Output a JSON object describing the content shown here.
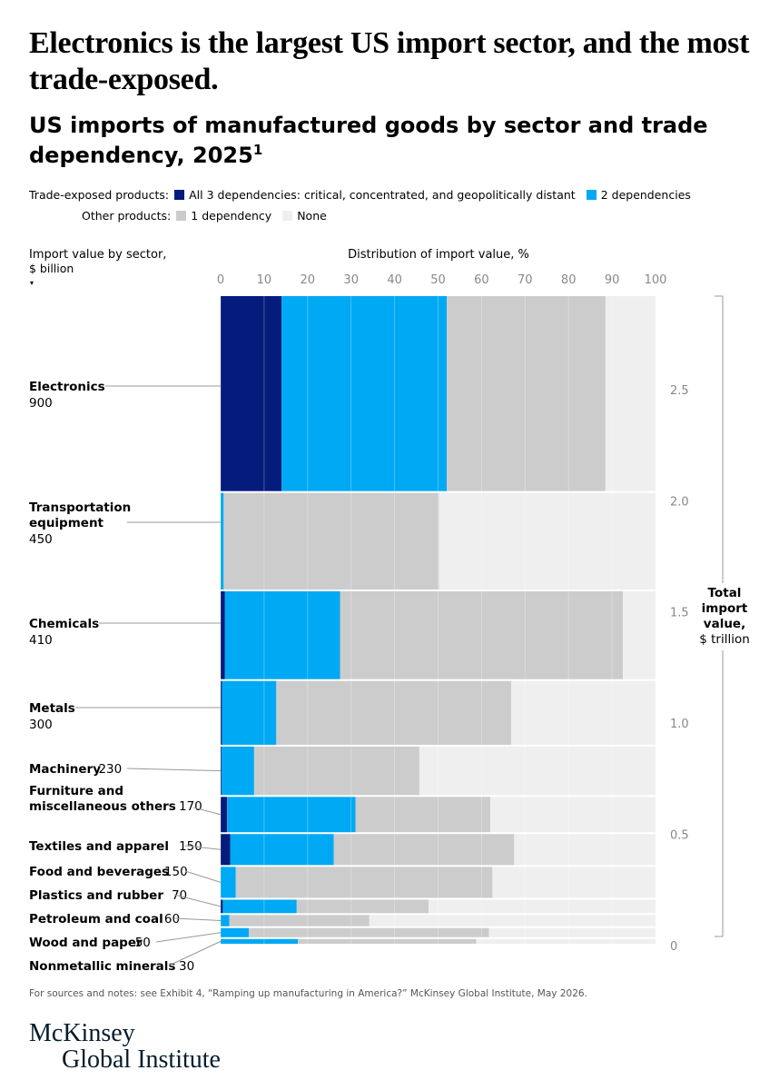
{
  "headline": "Electronics is the largest US import sector, and the most trade-exposed.",
  "subtitle": "US imports of manufactured goods by sector and trade dependency, 2025",
  "subtitle_note": "1",
  "legend": {
    "row1_label": "Trade-exposed products:",
    "row2_label": "Other products:",
    "items": [
      {
        "label": "All 3 dependencies: critical, concentrated, and geopolitically distant",
        "color": "#051c7c"
      },
      {
        "label": "2 dependencies",
        "color": "#00a9f4"
      },
      {
        "label": "1 dependency",
        "color": "#cccccc"
      },
      {
        "label": "None",
        "color": "#efefef"
      }
    ]
  },
  "footnote": "For sources and notes: see Exhibit 4, “Ramping up manufacturing in America?” McKinsey Global Institute, May 2026.",
  "brand": {
    "line1": "McKinsey",
    "line2": "Global Institute"
  },
  "chart_data": {
    "type": "bar",
    "subtype": "marimekko",
    "x_axis_title": "Distribution of import value, %",
    "x_ticks": [
      "0",
      "10",
      "20",
      "30",
      "40",
      "50",
      "60",
      "70",
      "80",
      "90",
      "100"
    ],
    "xlim": [
      0,
      100
    ],
    "left_axis_title": "Import value by sector,",
    "left_axis_unit": "$ billion",
    "right_axis_title": [
      "Total",
      "import",
      "value,",
      "$ trillion"
    ],
    "right_ticks": [
      "0",
      "0.5",
      "1.0",
      "1.5",
      "2.0",
      "2.5"
    ],
    "right_tick_values": [
      0,
      0.5,
      1.0,
      1.5,
      2.0,
      2.5
    ],
    "total_trillion": 2.92,
    "series_names": [
      "All 3 dependencies",
      "2 dependencies",
      "1 dependency",
      "None"
    ],
    "colors": [
      "#051c7c",
      "#00a9f4",
      "#cccccc",
      "#efefef"
    ],
    "sectors": [
      {
        "name": "Electronics",
        "value_text": "900",
        "value": 900,
        "label_lines": [
          "Electronics"
        ],
        "values": [
          14,
          38,
          36.5,
          11.5
        ]
      },
      {
        "name": "Transportation equipment",
        "value_text": "450",
        "value": 450,
        "label_lines": [
          "Transportation",
          "equipment"
        ],
        "values": [
          0,
          0.7,
          49.5,
          49.8
        ]
      },
      {
        "name": "Chemicals",
        "value_text": "410",
        "value": 410,
        "label_lines": [
          "Chemicals"
        ],
        "values": [
          1,
          26.5,
          65,
          7.5
        ]
      },
      {
        "name": "Metals",
        "value_text": "300",
        "value": 300,
        "label_lines": [
          "Metals"
        ],
        "values": [
          0.3,
          12.5,
          54,
          33.2
        ]
      },
      {
        "name": "Machinery",
        "value_text": "230",
        "value": 230,
        "label_lines": [
          "Machinery"
        ],
        "values": [
          0.2,
          7.5,
          38,
          54.3
        ]
      },
      {
        "name": "Furniture and miscellaneous others",
        "value_text": "170",
        "value": 170,
        "label_lines": [
          "Furniture and",
          "miscellaneous others"
        ],
        "values": [
          1.5,
          29.5,
          31,
          38
        ]
      },
      {
        "name": "Textiles and apparel",
        "value_text": "150",
        "value": 150,
        "label_lines": [
          "Textiles and apparel"
        ],
        "values": [
          2.2,
          23.8,
          41.5,
          32.5
        ]
      },
      {
        "name": "Food and beverages",
        "value_text": "150",
        "value": 150,
        "label_lines": [
          "Food and beverages"
        ],
        "values": [
          0,
          3.5,
          59,
          37.5
        ]
      },
      {
        "name": "Plastics and rubber",
        "value_text": "70",
        "value": 70,
        "label_lines": [
          "Plastics and rubber"
        ],
        "values": [
          0.5,
          17,
          30.3,
          52.2
        ]
      },
      {
        "name": "Petroleum and coal",
        "value_text": "60",
        "value": 60,
        "label_lines": [
          "Petroleum and coal"
        ],
        "values": [
          0,
          2,
          32.2,
          65.8
        ]
      },
      {
        "name": "Wood and paper",
        "value_text": "50",
        "value": 50,
        "label_lines": [
          "Wood and paper"
        ],
        "values": [
          0,
          6.5,
          55.2,
          38.3
        ]
      },
      {
        "name": "Nonmetallic minerals",
        "value_text": "30",
        "value": 30,
        "label_lines": [
          "Nonmetallic minerals"
        ],
        "values": [
          0,
          17.8,
          41,
          41.2
        ]
      }
    ]
  }
}
